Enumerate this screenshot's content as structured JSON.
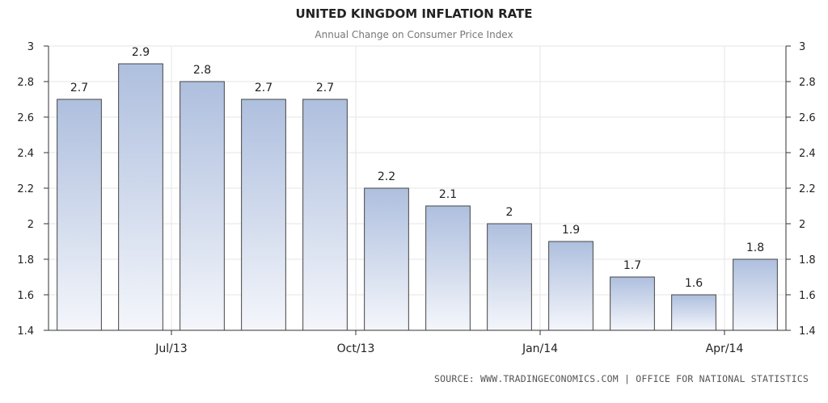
{
  "chart_data": {
    "type": "bar",
    "title": "UNITED KINGDOM INFLATION RATE",
    "subtitle": "Annual Change on Consumer Price Index",
    "source": "SOURCE: WWW.TRADINGECONOMICS.COM | OFFICE FOR NATIONAL STATISTICS",
    "values": [
      2.7,
      2.9,
      2.8,
      2.7,
      2.7,
      2.2,
      2.1,
      2,
      1.9,
      1.7,
      1.6,
      1.8
    ],
    "data_labels": [
      "2.7",
      "2.9",
      "2.8",
      "2.7",
      "2.7",
      "2.2",
      "2.1",
      "2",
      "1.9",
      "1.7",
      "1.6",
      "1.8"
    ],
    "x_tick_labels": [
      {
        "label": "Jul/13",
        "after_bar_index": 1
      },
      {
        "label": "Oct/13",
        "after_bar_index": 4
      },
      {
        "label": "Jan/14",
        "after_bar_index": 7
      },
      {
        "label": "Apr/14",
        "after_bar_index": 10
      }
    ],
    "y_ticks": [
      "1.4",
      "1.6",
      "1.8",
      "2",
      "2.2",
      "2.4",
      "2.6",
      "2.8",
      "3"
    ],
    "ylim": [
      1.4,
      3
    ],
    "xlabel": "",
    "ylabel": "",
    "grid": true,
    "axes": "left-and-right",
    "colors": {
      "bar_top": "#aebfde",
      "bar_bottom": "#f4f6fb",
      "bar_stroke": "#444444",
      "grid": "#e6e6e6",
      "text": "#222222",
      "axis": "#333333"
    }
  }
}
